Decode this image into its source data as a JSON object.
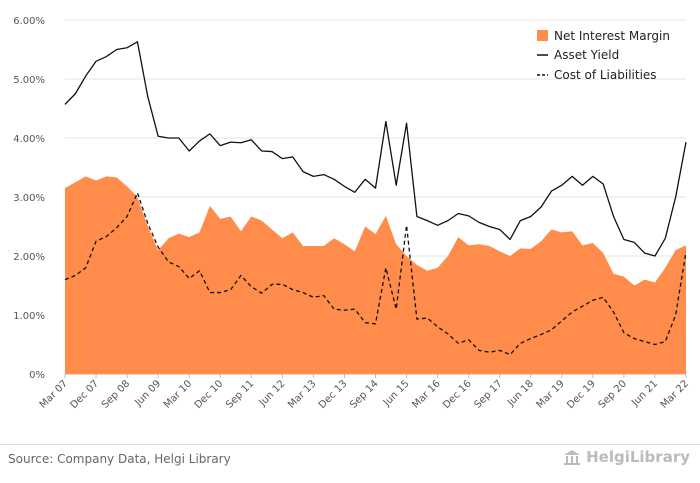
{
  "chart_data": {
    "type": "area",
    "categories": [
      "Mar 07",
      "Jun 07",
      "Sep 07",
      "Dec 07",
      "Mar 08",
      "Jun 08",
      "Sep 08",
      "Dec 08",
      "Mar 09",
      "Jun 09",
      "Sep 09",
      "Dec 09",
      "Mar 10",
      "Jun 10",
      "Sep 10",
      "Dec 10",
      "Mar 11",
      "Jun 11",
      "Sep 11",
      "Dec 11",
      "Mar 12",
      "Jun 12",
      "Sep 12",
      "Dec 12",
      "Mar 13",
      "Jun 13",
      "Sep 13",
      "Dec 13",
      "Mar 14",
      "Jun 14",
      "Sep 14",
      "Dec 14",
      "Mar 15",
      "Jun 15",
      "Sep 15",
      "Dec 15",
      "Mar 16",
      "Jun 16",
      "Sep 16",
      "Dec 16",
      "Mar 17",
      "Jun 17",
      "Sep 17",
      "Dec 17",
      "Mar 18",
      "Jun 18",
      "Sep 18",
      "Dec 18",
      "Mar 19",
      "Jun 19",
      "Sep 19",
      "Dec 19",
      "Mar 20",
      "Jun 20",
      "Sep 20",
      "Dec 20",
      "Mar 21",
      "Jun 21",
      "Sep 21",
      "Dec 21",
      "Mar 22"
    ],
    "tick_labels": [
      "Mar 07",
      "Dec 07",
      "Sep 08",
      "Jun 09",
      "Mar 10",
      "Dec 10",
      "Sep 11",
      "Jun 12",
      "Mar 13",
      "Dec 13",
      "Sep 14",
      "Jun 15",
      "Mar 16",
      "Dec 16",
      "Sep 17",
      "Jun 18",
      "Mar 19",
      "Dec 19",
      "Sep 20",
      "Jun 21",
      "Mar 22"
    ],
    "series": [
      {
        "name": "Net Interest Margin",
        "style": "area",
        "color": "#ff8c4a",
        "values": [
          3.15,
          3.25,
          3.35,
          3.28,
          3.35,
          3.33,
          3.18,
          3.0,
          2.5,
          2.1,
          2.3,
          2.38,
          2.32,
          2.4,
          2.85,
          2.63,
          2.67,
          2.42,
          2.67,
          2.6,
          2.45,
          2.3,
          2.4,
          2.17,
          2.17,
          2.17,
          2.3,
          2.2,
          2.08,
          2.5,
          2.37,
          2.68,
          2.2,
          2.0,
          1.85,
          1.75,
          1.8,
          2.0,
          2.32,
          2.18,
          2.2,
          2.17,
          2.08,
          2.0,
          2.13,
          2.12,
          2.25,
          2.45,
          2.4,
          2.42,
          2.18,
          2.22,
          2.05,
          1.7,
          1.65,
          1.5,
          1.6,
          1.55,
          1.8,
          2.1,
          2.18
        ]
      },
      {
        "name": "Asset Yield",
        "style": "solid",
        "color": "#111111",
        "values": [
          4.57,
          4.75,
          5.05,
          5.3,
          5.38,
          5.5,
          5.53,
          5.63,
          4.7,
          4.03,
          4.0,
          4.0,
          3.78,
          3.95,
          4.07,
          3.87,
          3.93,
          3.92,
          3.97,
          3.78,
          3.77,
          3.65,
          3.68,
          3.43,
          3.35,
          3.38,
          3.3,
          3.18,
          3.08,
          3.3,
          3.15,
          4.28,
          3.2,
          4.25,
          2.67,
          2.6,
          2.52,
          2.6,
          2.72,
          2.68,
          2.57,
          2.5,
          2.45,
          2.28,
          2.6,
          2.67,
          2.83,
          3.1,
          3.2,
          3.35,
          3.2,
          3.35,
          3.22,
          2.67,
          2.28,
          2.23,
          2.05,
          2.0,
          2.3,
          3.0,
          3.93
        ]
      },
      {
        "name": "Cost of Liabilities",
        "style": "dashed",
        "color": "#111111",
        "values": [
          1.6,
          1.67,
          1.8,
          2.25,
          2.33,
          2.48,
          2.67,
          3.07,
          2.55,
          2.15,
          1.9,
          1.82,
          1.62,
          1.75,
          1.38,
          1.38,
          1.43,
          1.67,
          1.48,
          1.37,
          1.52,
          1.52,
          1.43,
          1.38,
          1.3,
          1.33,
          1.1,
          1.08,
          1.1,
          0.87,
          0.85,
          1.8,
          1.1,
          2.52,
          0.93,
          0.95,
          0.8,
          0.68,
          0.52,
          0.58,
          0.4,
          0.37,
          0.4,
          0.33,
          0.52,
          0.6,
          0.67,
          0.75,
          0.9,
          1.05,
          1.15,
          1.25,
          1.3,
          1.05,
          0.7,
          0.6,
          0.55,
          0.5,
          0.55,
          1.0,
          2.07
        ]
      }
    ],
    "ylim": [
      0,
      6
    ],
    "yticks": [
      "0%",
      "1.00%",
      "2.00%",
      "3.00%",
      "4.00%",
      "5.00%",
      "6.00%"
    ],
    "legend_position": "top-right",
    "grid": true
  },
  "footer": {
    "source": "Source: Company Data, Helgi Library",
    "brand": "HelgiLibrary"
  },
  "colors": {
    "nim": "#ff8c4a",
    "line": "#111111",
    "grid": "#e6e6e6"
  }
}
